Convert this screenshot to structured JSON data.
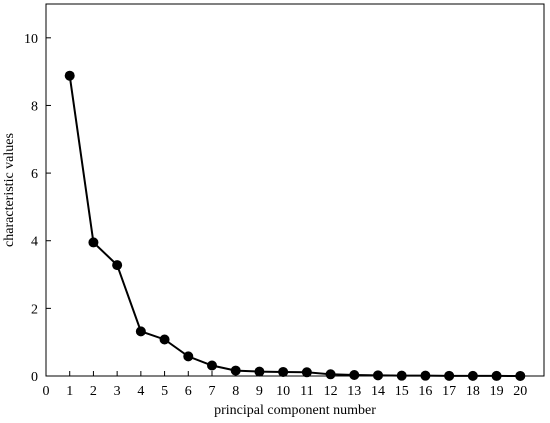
{
  "chart_data": {
    "type": "line",
    "title": "",
    "xlabel": "principal component number",
    "ylabel": "characteristic values",
    "xlim": [
      0,
      21
    ],
    "ylim": [
      0,
      11
    ],
    "x_ticks": [
      0,
      1,
      2,
      3,
      4,
      5,
      6,
      7,
      8,
      9,
      10,
      11,
      12,
      13,
      14,
      15,
      16,
      17,
      18,
      19,
      20
    ],
    "y_ticks": [
      0,
      2,
      4,
      6,
      8,
      10
    ],
    "grid": false,
    "legend": "none",
    "marker": "filled-circle",
    "colors": {
      "line": "#000000",
      "marker": "#000000",
      "axis": "#000000"
    },
    "series": [
      {
        "x": [
          1,
          2,
          3,
          4,
          5,
          6,
          7,
          8,
          9,
          10,
          11,
          12,
          13,
          14,
          15,
          16,
          17,
          18,
          19,
          20
        ],
        "values": [
          8.88,
          3.95,
          3.28,
          1.32,
          1.08,
          0.58,
          0.31,
          0.16,
          0.13,
          0.12,
          0.11,
          0.05,
          0.03,
          0.02,
          0.01,
          0.01,
          0.005,
          0.003,
          0.002,
          0.001
        ]
      }
    ]
  }
}
